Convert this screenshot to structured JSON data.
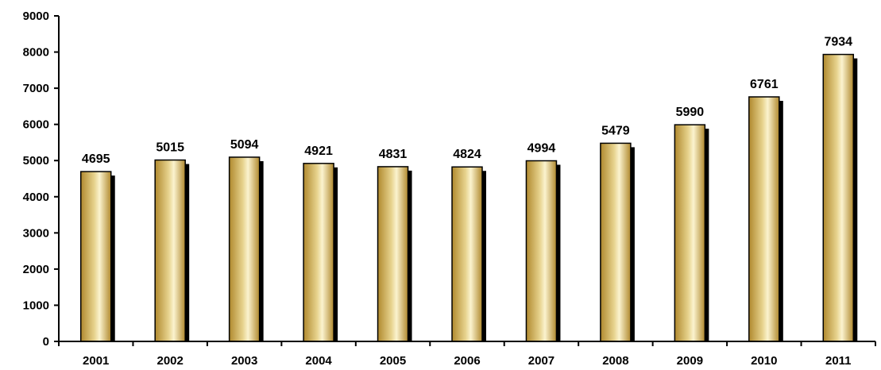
{
  "chart_data": {
    "type": "bar",
    "categories": [
      "2001",
      "2002",
      "2003",
      "2004",
      "2005",
      "2006",
      "2007",
      "2008",
      "2009",
      "2010",
      "2011"
    ],
    "values": [
      4695,
      5015,
      5094,
      4921,
      4831,
      4824,
      4994,
      5479,
      5990,
      6761,
      7934
    ],
    "title": "",
    "xlabel": "",
    "ylabel": "",
    "ylim": [
      0,
      9000
    ],
    "yticks": [
      0,
      1000,
      2000,
      3000,
      4000,
      5000,
      6000,
      7000,
      8000,
      9000
    ],
    "grid": false,
    "legend": "none",
    "data_labels": true,
    "colors": {
      "bar_gradient_dark": "#b0892e",
      "bar_gradient_mid": "#e7d38e",
      "bar_gradient_light": "#fbf3cf",
      "bar_outline": "#000000",
      "bar_shadow": "#000000",
      "axis": "#000000"
    }
  }
}
